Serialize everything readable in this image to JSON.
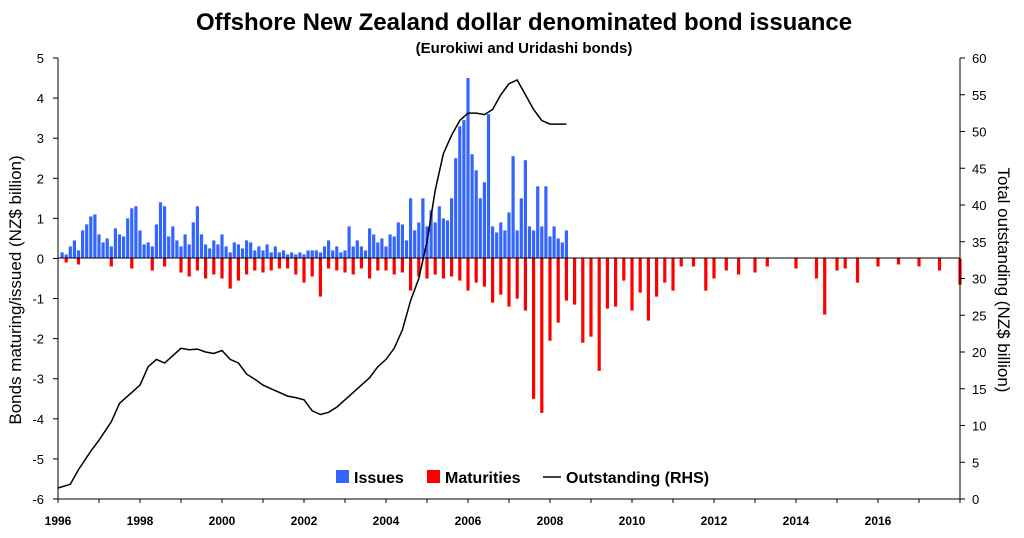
{
  "chart_data": {
    "type": "bar",
    "title": "Offshore New Zealand dollar denominated bond issuance",
    "subtitle": "(Eurokiwi and Uridashi bonds)",
    "ylabel_left": "Bonds maturing/issued (NZ$ billion)",
    "ylabel_right": "Total outstanding (NZ$ billion)",
    "ylim_left": [
      -6,
      5
    ],
    "ylim_right": [
      0,
      60
    ],
    "y_ticks_left": [
      5,
      4,
      3,
      2,
      1,
      0,
      -1,
      -2,
      -3,
      -4,
      -5,
      -6
    ],
    "y_ticks_right": [
      60,
      55,
      50,
      45,
      40,
      35,
      30,
      25,
      20,
      15,
      10,
      5,
      0
    ],
    "xlim": [
      1996,
      2018
    ],
    "x_ticks": [
      1996,
      1998,
      2000,
      2002,
      2004,
      2006,
      2008,
      2010,
      2012,
      2014,
      2016
    ],
    "legend_position": "bottom-center",
    "colors": {
      "issues": "#3366FF",
      "maturities": "#FF0000",
      "outstanding": "#000000"
    },
    "series": [
      {
        "name": "Issues",
        "kind": "bar",
        "color": "#3366FF",
        "x": [
          1996.1,
          1996.2,
          1996.3,
          1996.4,
          1996.5,
          1996.6,
          1996.7,
          1996.8,
          1996.9,
          1997.0,
          1997.1,
          1997.2,
          1997.3,
          1997.4,
          1997.5,
          1997.6,
          1997.7,
          1997.8,
          1997.9,
          1998.0,
          1998.1,
          1998.2,
          1998.3,
          1998.4,
          1998.5,
          1998.6,
          1998.7,
          1998.8,
          1998.9,
          1999.0,
          1999.1,
          1999.2,
          1999.3,
          1999.4,
          1999.5,
          1999.6,
          1999.7,
          1999.8,
          1999.9,
          2000.0,
          2000.1,
          2000.2,
          2000.3,
          2000.4,
          2000.5,
          2000.6,
          2000.7,
          2000.8,
          2000.9,
          2001.0,
          2001.1,
          2001.2,
          2001.3,
          2001.4,
          2001.5,
          2001.6,
          2001.7,
          2001.8,
          2001.9,
          2002.0,
          2002.1,
          2002.2,
          2002.3,
          2002.4,
          2002.5,
          2002.6,
          2002.7,
          2002.8,
          2002.9,
          2003.0,
          2003.1,
          2003.2,
          2003.3,
          2003.4,
          2003.5,
          2003.6,
          2003.7,
          2003.8,
          2003.9,
          2004.0,
          2004.1,
          2004.2,
          2004.3,
          2004.4,
          2004.5,
          2004.6,
          2004.7,
          2004.8,
          2004.9,
          2005.0,
          2005.1,
          2005.2,
          2005.3,
          2005.4,
          2005.5,
          2005.6,
          2005.7,
          2005.8,
          2005.9,
          2006.0,
          2006.1,
          2006.2,
          2006.3,
          2006.4,
          2006.5,
          2006.6,
          2006.7,
          2006.8,
          2006.9,
          2007.0,
          2007.1,
          2007.2,
          2007.3,
          2007.4,
          2007.5,
          2007.6,
          2007.7,
          2007.8,
          2007.9,
          2008.0,
          2008.1,
          2008.2,
          2008.3,
          2008.4
        ],
        "values": [
          0.15,
          0.1,
          0.3,
          0.45,
          0.2,
          0.7,
          0.85,
          1.05,
          1.1,
          0.6,
          0.4,
          0.5,
          0.3,
          0.75,
          0.6,
          0.55,
          1.0,
          1.25,
          1.3,
          0.7,
          0.35,
          0.4,
          0.3,
          0.85,
          1.4,
          1.3,
          0.55,
          0.8,
          0.45,
          0.3,
          0.6,
          0.35,
          0.9,
          1.3,
          0.6,
          0.35,
          0.25,
          0.45,
          0.35,
          0.6,
          0.3,
          0.15,
          0.4,
          0.35,
          0.25,
          0.45,
          0.4,
          0.2,
          0.3,
          0.2,
          0.35,
          0.15,
          0.3,
          0.15,
          0.2,
          0.1,
          0.15,
          0.1,
          0.15,
          0.1,
          0.2,
          0.2,
          0.2,
          0.15,
          0.3,
          0.45,
          0.2,
          0.3,
          0.15,
          0.2,
          0.8,
          0.3,
          0.45,
          0.3,
          0.2,
          0.75,
          0.6,
          0.4,
          0.5,
          0.3,
          0.6,
          0.55,
          0.9,
          0.85,
          0.45,
          1.5,
          0.7,
          0.9,
          1.5,
          0.8,
          1.2,
          0.9,
          1.3,
          1.0,
          0.95,
          1.5,
          2.5,
          3.3,
          3.45,
          4.5,
          2.6,
          2.2,
          1.5,
          1.9,
          3.6,
          0.8,
          0.65,
          0.9,
          0.7,
          1.15,
          2.55,
          0.7,
          1.5,
          2.45,
          0.8,
          0.7,
          1.8,
          0.8,
          1.8,
          0.55,
          0.8,
          0.5,
          0.4,
          0.7
        ]
      },
      {
        "name": "Maturities",
        "kind": "bar",
        "color": "#FF0000",
        "x": [
          1996.2,
          1996.5,
          1997.3,
          1997.8,
          1998.3,
          1998.6,
          1999.0,
          1999.2,
          1999.4,
          1999.6,
          1999.8,
          2000.0,
          2000.2,
          2000.4,
          2000.6,
          2000.8,
          2001.0,
          2001.2,
          2001.4,
          2001.6,
          2001.8,
          2002.0,
          2002.2,
          2002.4,
          2002.6,
          2002.8,
          2003.0,
          2003.2,
          2003.4,
          2003.6,
          2003.8,
          2004.0,
          2004.2,
          2004.4,
          2004.6,
          2004.8,
          2005.0,
          2005.2,
          2005.4,
          2005.6,
          2005.8,
          2006.0,
          2006.2,
          2006.4,
          2006.6,
          2006.8,
          2007.0,
          2007.2,
          2007.4,
          2007.6,
          2007.8,
          2008.0,
          2008.2,
          2008.4,
          2008.6,
          2008.8,
          2009.0,
          2009.2,
          2009.4,
          2009.6,
          2009.8,
          2010.0,
          2010.2,
          2010.4,
          2010.6,
          2010.8,
          2011.0,
          2011.2,
          2011.5,
          2011.8,
          2012.0,
          2012.3,
          2012.6,
          2013.0,
          2013.3,
          2014.0,
          2014.5,
          2014.7,
          2015.0,
          2015.2,
          2015.5,
          2016.0,
          2016.5,
          2017.0,
          2017.5,
          2018.0
        ],
        "values": [
          -0.1,
          -0.15,
          -0.2,
          -0.25,
          -0.3,
          -0.2,
          -0.35,
          -0.45,
          -0.3,
          -0.5,
          -0.4,
          -0.5,
          -0.75,
          -0.55,
          -0.4,
          -0.3,
          -0.35,
          -0.3,
          -0.25,
          -0.25,
          -0.4,
          -0.6,
          -0.45,
          -0.95,
          -0.25,
          -0.3,
          -0.35,
          -0.4,
          -0.25,
          -0.5,
          -0.3,
          -0.3,
          -0.4,
          -0.35,
          -0.8,
          -0.45,
          -0.5,
          -0.4,
          -0.5,
          -0.45,
          -0.55,
          -0.8,
          -0.6,
          -0.7,
          -1.1,
          -0.9,
          -1.2,
          -1.0,
          -1.3,
          -3.5,
          -3.85,
          -2.05,
          -1.6,
          -1.05,
          -1.15,
          -2.1,
          -1.95,
          -2.8,
          -1.25,
          -1.2,
          -0.55,
          -1.3,
          -0.85,
          -1.55,
          -0.95,
          -0.6,
          -0.8,
          -0.2,
          -0.2,
          -0.8,
          -0.5,
          -0.3,
          -0.4,
          -0.35,
          -0.2,
          -0.25,
          -0.5,
          -1.4,
          -0.3,
          -0.25,
          -0.6,
          -0.2,
          -0.15,
          -0.2,
          -0.3,
          -0.65
        ]
      },
      {
        "name": "Outstanding (RHS)",
        "kind": "line",
        "color": "#000000",
        "x": [
          1996.0,
          1996.3,
          1996.5,
          1996.8,
          1997.0,
          1997.3,
          1997.5,
          1997.8,
          1998.0,
          1998.2,
          1998.4,
          1998.6,
          1998.8,
          1999.0,
          1999.2,
          1999.4,
          1999.6,
          1999.8,
          2000.0,
          2000.2,
          2000.4,
          2000.6,
          2000.8,
          2001.0,
          2001.2,
          2001.4,
          2001.6,
          2001.8,
          2002.0,
          2002.2,
          2002.4,
          2002.6,
          2002.8,
          2003.0,
          2003.2,
          2003.4,
          2003.6,
          2003.8,
          2004.0,
          2004.2,
          2004.4,
          2004.6,
          2004.8,
          2005.0,
          2005.2,
          2005.4,
          2005.6,
          2005.8,
          2006.0,
          2006.2,
          2006.4,
          2006.6,
          2006.8,
          2007.0,
          2007.2,
          2007.4,
          2007.6,
          2007.8,
          2008.0,
          2008.2,
          2008.4
        ],
        "values": [
          1.5,
          2.0,
          4.0,
          6.5,
          8.0,
          10.5,
          13.0,
          14.5,
          15.5,
          18.0,
          19.0,
          18.5,
          19.5,
          20.5,
          20.3,
          20.4,
          20.0,
          19.8,
          20.2,
          19.0,
          18.5,
          17.0,
          16.3,
          15.5,
          15.0,
          14.5,
          14.0,
          13.8,
          13.5,
          12.0,
          11.5,
          11.8,
          12.5,
          13.5,
          14.5,
          15.5,
          16.5,
          18.0,
          19.0,
          20.5,
          23.0,
          27.0,
          30.0,
          35.0,
          42.0,
          47.0,
          49.5,
          51.5,
          52.5,
          52.5,
          52.3,
          53.0,
          55.0,
          56.5,
          57.0,
          55.0,
          53.0,
          51.5,
          51.0,
          51.0,
          51.0
        ]
      }
    ]
  }
}
